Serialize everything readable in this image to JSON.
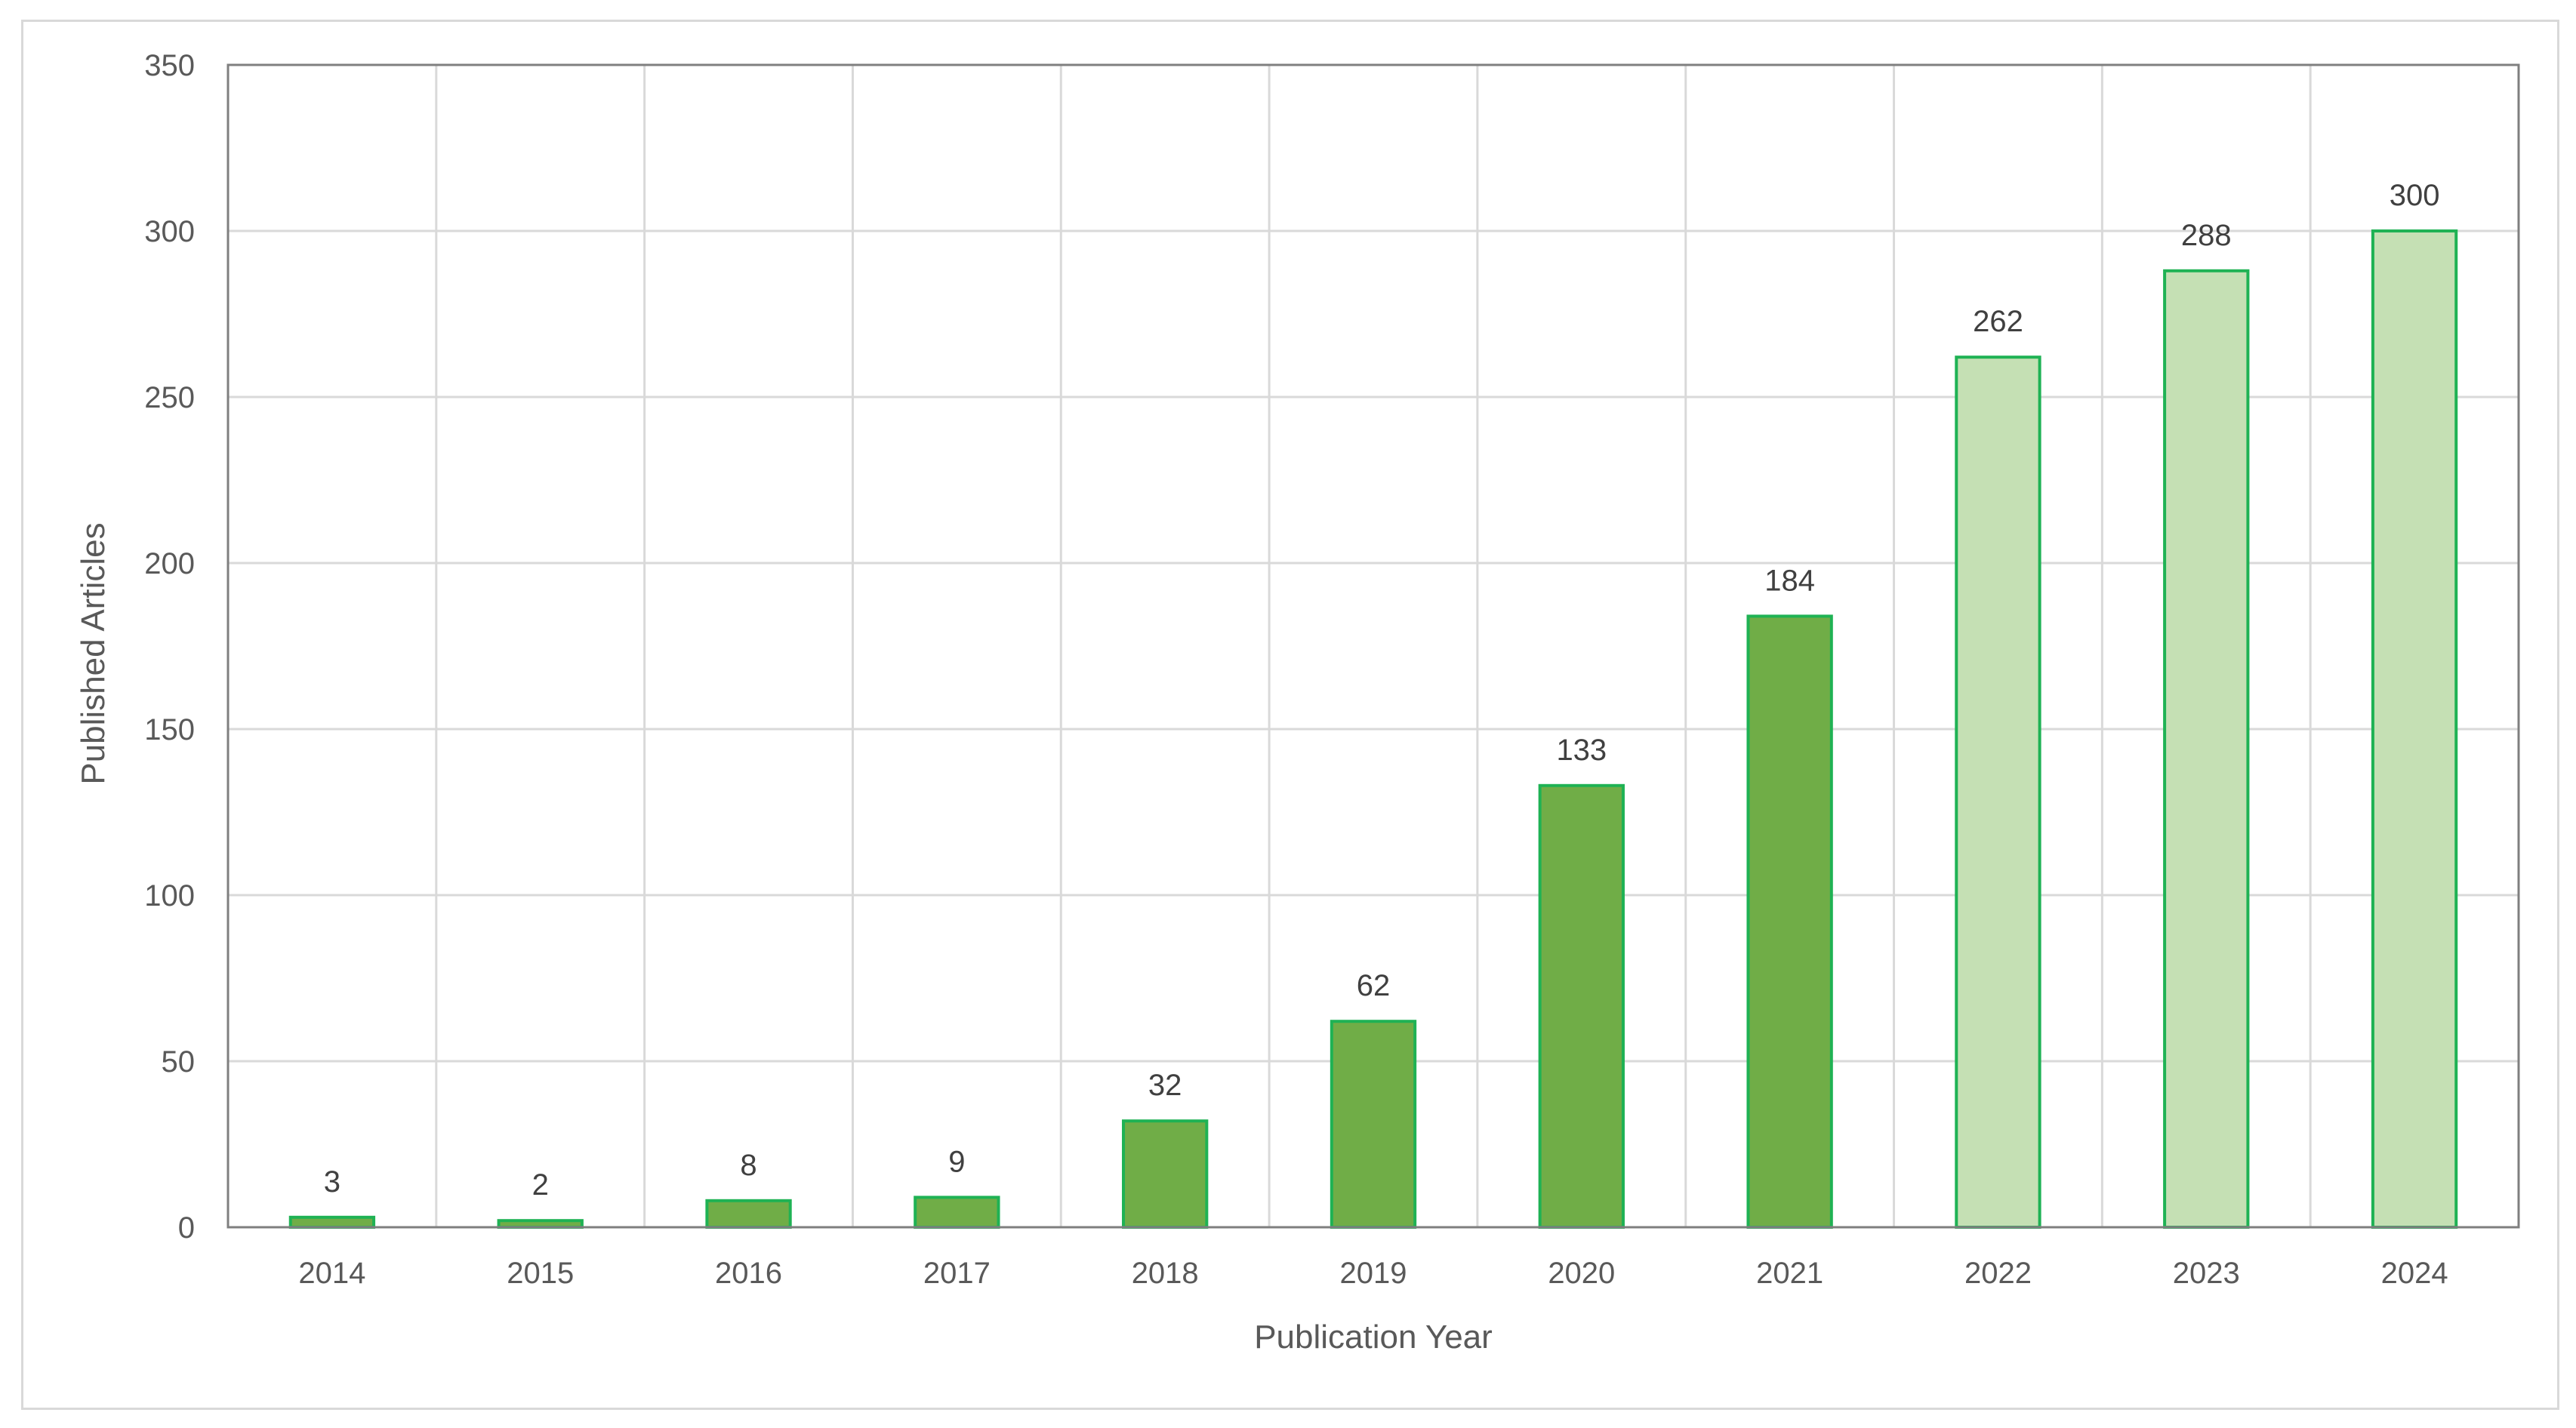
{
  "chart_data": {
    "type": "bar",
    "title": "",
    "xlabel": "Publication Year",
    "ylabel": "Published Articles",
    "ylim": [
      0,
      350
    ],
    "yticks": [
      0,
      50,
      100,
      150,
      200,
      250,
      300,
      350
    ],
    "grid": true,
    "legend": "none",
    "categories": [
      "2014",
      "2015",
      "2016",
      "2017",
      "2018",
      "2019",
      "2020",
      "2021",
      "2022",
      "2023",
      "2024"
    ],
    "values": [
      3,
      2,
      8,
      9,
      32,
      62,
      133,
      184,
      262,
      288,
      300
    ],
    "bar_fill_colors": [
      "#70ad47",
      "#70ad47",
      "#70ad47",
      "#70ad47",
      "#70ad47",
      "#70ad47",
      "#70ad47",
      "#70ad47",
      "#c5e0b4",
      "#c5e0b4",
      "#c5e0b4"
    ],
    "bar_outline_color": "#1fb254"
  }
}
